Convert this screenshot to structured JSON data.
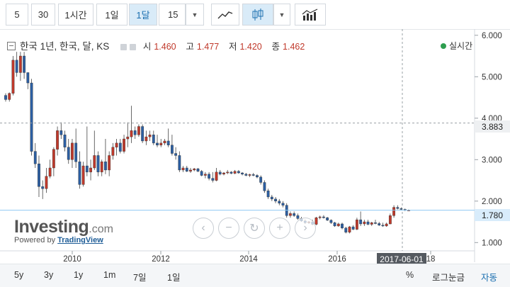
{
  "toolbar": {
    "intervals": [
      {
        "label": "5",
        "active": false
      },
      {
        "label": "30",
        "active": false
      },
      {
        "label": "1시간",
        "active": false
      },
      {
        "label": "1일",
        "active": false
      },
      {
        "label": "1달",
        "active": true
      },
      {
        "label": "15",
        "active": false
      }
    ],
    "chart_type_icons": [
      "line-chart-icon",
      "candlestick-icon",
      "indicators-icon"
    ]
  },
  "legend": {
    "title": "한국 1년, 한국, 달, KS",
    "ohlc": [
      {
        "label": "시",
        "value": "1.460"
      },
      {
        "label": "고",
        "value": "1.477"
      },
      {
        "label": "저",
        "value": "1.420"
      },
      {
        "label": "종",
        "value": "1.462"
      }
    ]
  },
  "live_label": "실시간",
  "logo": {
    "brand": "Investing",
    "brand_suffix": ".com",
    "powered_prefix": "Powered by",
    "powered_by": "TradingView"
  },
  "crosshair": {
    "date_label": "2017-06-01",
    "price_label": "3.883"
  },
  "last_price_label": "1.780",
  "bottom": {
    "ranges": [
      "5y",
      "3y",
      "1y",
      "1m",
      "7일",
      "1일"
    ],
    "options": [
      {
        "label": "%",
        "active": false
      },
      {
        "label": "로그눈금",
        "active": false
      },
      {
        "label": "자동",
        "active": true
      }
    ]
  },
  "colors": {
    "up": "#c0392b",
    "down": "#2c5fa3",
    "crosshair": "#9aa0a6",
    "last_price_line": "#8fc9f2"
  },
  "chart_data": {
    "type": "candlestick",
    "x_tick_labels": [
      "2010",
      "2012",
      "2014",
      "2016",
      "18"
    ],
    "y_tick_labels": [
      "1.000",
      "2.000",
      "3.000",
      "4.000",
      "5.000",
      "6.000"
    ],
    "ylim": [
      0.8,
      6.15
    ],
    "grid": false,
    "series": [
      {
        "ohlc": [
          [
            4.55,
            4.6,
            4.4,
            4.45
          ],
          [
            4.45,
            4.62,
            4.4,
            4.6
          ],
          [
            4.6,
            5.5,
            4.55,
            5.4
          ],
          [
            5.4,
            5.6,
            5.0,
            5.1
          ],
          [
            5.1,
            5.6,
            4.9,
            5.5
          ],
          [
            5.5,
            5.6,
            4.95,
            5.1
          ],
          [
            5.1,
            5.1,
            4.7,
            4.85
          ],
          [
            4.85,
            4.95,
            3.1,
            3.2
          ],
          [
            3.2,
            3.4,
            2.8,
            2.9
          ],
          [
            2.9,
            3.1,
            2.1,
            2.35
          ],
          [
            2.35,
            2.5,
            2.05,
            2.3
          ],
          [
            2.3,
            2.8,
            2.2,
            2.6
          ],
          [
            2.6,
            3.0,
            2.55,
            2.8
          ],
          [
            2.8,
            3.3,
            2.6,
            3.25
          ],
          [
            3.25,
            3.8,
            3.1,
            3.7
          ],
          [
            3.7,
            3.9,
            3.5,
            3.6
          ],
          [
            3.6,
            3.7,
            3.2,
            3.3
          ],
          [
            3.3,
            3.5,
            2.9,
            3.0
          ],
          [
            3.0,
            3.5,
            2.8,
            3.4
          ],
          [
            3.4,
            3.75,
            2.8,
            2.95
          ],
          [
            2.95,
            3.2,
            2.3,
            2.4
          ],
          [
            2.4,
            2.95,
            2.35,
            2.85
          ],
          [
            2.85,
            3.8,
            2.6,
            2.7
          ],
          [
            2.7,
            3.0,
            2.5,
            2.8
          ],
          [
            2.8,
            3.7,
            2.75,
            3.1
          ],
          [
            3.1,
            3.2,
            2.6,
            2.7
          ],
          [
            2.7,
            3.0,
            2.6,
            2.95
          ],
          [
            2.95,
            3.5,
            2.65,
            2.75
          ],
          [
            2.75,
            3.2,
            2.6,
            3.1
          ],
          [
            3.1,
            3.4,
            3.0,
            3.3
          ],
          [
            3.3,
            3.5,
            3.1,
            3.4
          ],
          [
            3.4,
            3.5,
            3.15,
            3.2
          ],
          [
            3.2,
            3.6,
            3.15,
            3.5
          ],
          [
            3.5,
            3.9,
            3.3,
            3.55
          ],
          [
            3.55,
            4.3,
            3.4,
            3.7
          ],
          [
            3.7,
            3.8,
            3.5,
            3.6
          ],
          [
            3.6,
            3.85,
            3.55,
            3.8
          ],
          [
            3.8,
            3.85,
            3.4,
            3.45
          ],
          [
            3.45,
            3.7,
            3.35,
            3.55
          ],
          [
            3.55,
            3.7,
            3.45,
            3.6
          ],
          [
            3.6,
            3.7,
            3.35,
            3.4
          ],
          [
            3.4,
            3.6,
            3.3,
            3.35
          ],
          [
            3.35,
            3.5,
            3.3,
            3.4
          ],
          [
            3.4,
            3.5,
            3.35,
            3.45
          ],
          [
            3.45,
            3.75,
            3.3,
            3.35
          ],
          [
            3.35,
            3.6,
            3.1,
            3.15
          ],
          [
            3.15,
            3.3,
            3.0,
            3.1
          ],
          [
            3.1,
            3.2,
            2.7,
            2.75
          ],
          [
            2.75,
            2.85,
            2.7,
            2.8
          ],
          [
            2.8,
            2.85,
            2.7,
            2.72
          ],
          [
            2.72,
            2.8,
            2.68,
            2.75
          ],
          [
            2.75,
            2.8,
            2.72,
            2.78
          ],
          [
            2.78,
            2.8,
            2.7,
            2.72
          ],
          [
            2.72,
            2.75,
            2.6,
            2.62
          ],
          [
            2.62,
            2.7,
            2.55,
            2.65
          ],
          [
            2.65,
            2.7,
            2.5,
            2.55
          ],
          [
            2.55,
            2.7,
            2.45,
            2.5
          ],
          [
            2.5,
            2.8,
            2.48,
            2.7
          ],
          [
            2.7,
            2.75,
            2.62,
            2.65
          ],
          [
            2.65,
            2.7,
            2.62,
            2.68
          ],
          [
            2.68,
            2.75,
            2.65,
            2.7
          ],
          [
            2.7,
            2.72,
            2.65,
            2.67
          ],
          [
            2.67,
            2.75,
            2.65,
            2.72
          ],
          [
            2.72,
            2.75,
            2.66,
            2.68
          ],
          [
            2.68,
            2.7,
            2.62,
            2.65
          ],
          [
            2.65,
            2.68,
            2.6,
            2.62
          ],
          [
            2.62,
            2.66,
            2.58,
            2.64
          ],
          [
            2.64,
            2.68,
            2.6,
            2.62
          ],
          [
            2.62,
            2.65,
            2.55,
            2.58
          ],
          [
            2.58,
            2.62,
            2.4,
            2.45
          ],
          [
            2.45,
            2.5,
            2.2,
            2.25
          ],
          [
            2.25,
            2.3,
            2.05,
            2.1
          ],
          [
            2.1,
            2.15,
            2.0,
            2.05
          ],
          [
            2.05,
            2.1,
            1.95,
            2.0
          ],
          [
            2.0,
            2.05,
            1.9,
            1.95
          ],
          [
            1.95,
            2.0,
            1.85,
            1.9
          ],
          [
            1.9,
            1.95,
            1.6,
            1.65
          ],
          [
            1.65,
            1.75,
            1.6,
            1.7
          ],
          [
            1.7,
            1.75,
            1.62,
            1.65
          ],
          [
            1.65,
            1.7,
            1.55,
            1.58
          ],
          [
            1.58,
            1.62,
            1.5,
            1.52
          ],
          [
            1.52,
            1.56,
            1.45,
            1.48
          ],
          [
            1.48,
            1.52,
            1.45,
            1.5
          ],
          [
            1.5,
            1.55,
            1.42,
            1.44
          ],
          [
            1.44,
            1.62,
            1.42,
            1.6
          ],
          [
            1.6,
            1.65,
            1.56,
            1.62
          ],
          [
            1.62,
            1.66,
            1.58,
            1.6
          ],
          [
            1.6,
            1.62,
            1.52,
            1.54
          ],
          [
            1.54,
            1.56,
            1.45,
            1.48
          ],
          [
            1.48,
            1.5,
            1.38,
            1.4
          ],
          [
            1.4,
            1.48,
            1.38,
            1.45
          ],
          [
            1.45,
            1.48,
            1.32,
            1.35
          ],
          [
            1.35,
            1.38,
            1.22,
            1.25
          ],
          [
            1.25,
            1.4,
            1.22,
            1.38
          ],
          [
            1.38,
            1.42,
            1.3,
            1.32
          ],
          [
            1.32,
            1.6,
            1.3,
            1.55
          ],
          [
            1.55,
            1.75,
            1.4,
            1.45
          ],
          [
            1.45,
            1.55,
            1.4,
            1.5
          ],
          [
            1.5,
            1.55,
            1.42,
            1.44
          ],
          [
            1.44,
            1.5,
            1.4,
            1.48
          ],
          [
            1.48,
            1.55,
            1.44,
            1.46
          ],
          [
            1.46,
            1.5,
            1.4,
            1.42
          ],
          [
            1.42,
            1.48,
            1.38,
            1.4
          ],
          [
            1.4,
            1.48,
            1.38,
            1.45
          ],
          [
            1.45,
            1.7,
            1.44,
            1.65
          ],
          [
            1.65,
            1.9,
            1.6,
            1.85
          ],
          [
            1.85,
            1.9,
            1.8,
            1.82
          ],
          [
            1.82,
            1.85,
            1.78,
            1.8
          ],
          [
            1.8,
            1.82,
            1.76,
            1.78
          ],
          [
            1.78,
            1.8,
            1.76,
            1.78
          ]
        ]
      }
    ]
  }
}
